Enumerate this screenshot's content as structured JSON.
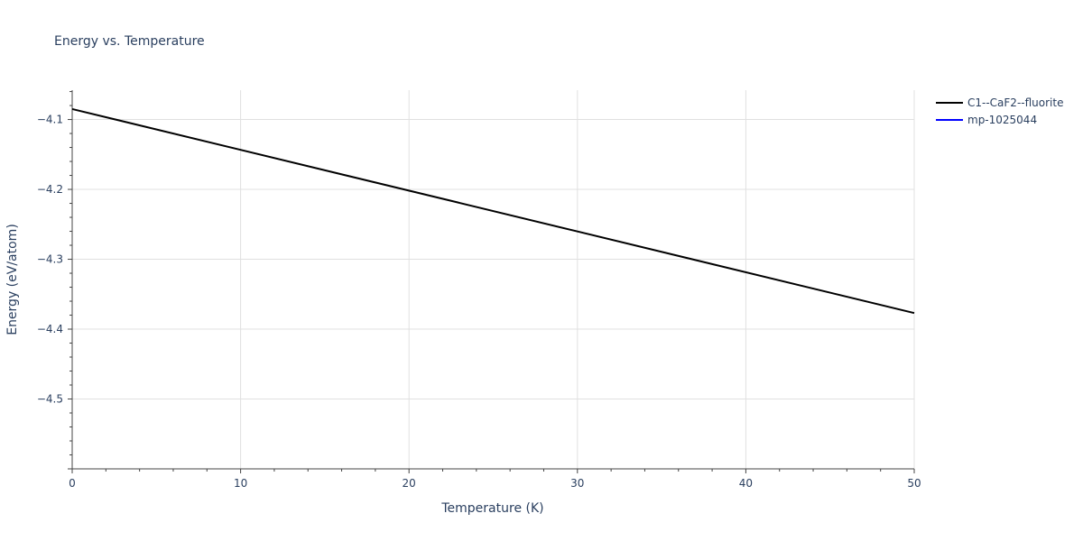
{
  "chart_data": {
    "type": "line",
    "title": "Energy vs. Temperature",
    "xlabel": "Temperature (K)",
    "ylabel": "Energy (eV/atom)",
    "xlim": [
      0,
      50
    ],
    "ylim": [
      -4.6,
      -4.058
    ],
    "x_ticks": [
      0,
      10,
      20,
      30,
      40,
      50
    ],
    "y_ticks": [
      -4.1,
      -4.2,
      -4.3,
      -4.4,
      -4.5
    ],
    "x_tick_labels": [
      "0",
      "10",
      "20",
      "30",
      "40",
      "50"
    ],
    "y_tick_labels": [
      "−4.1",
      "−4.2",
      "−4.3",
      "−4.4",
      "−4.5"
    ],
    "grid": true,
    "legend_position": "top-right, outside plot",
    "series": [
      {
        "name": "C1--CaF2--fluorite",
        "color": "#000000",
        "x": [
          0,
          50
        ],
        "y": [
          -4.085,
          -4.377
        ]
      },
      {
        "name": "mp-1025044",
        "color": "#0000ff",
        "x": [],
        "y": []
      }
    ]
  }
}
